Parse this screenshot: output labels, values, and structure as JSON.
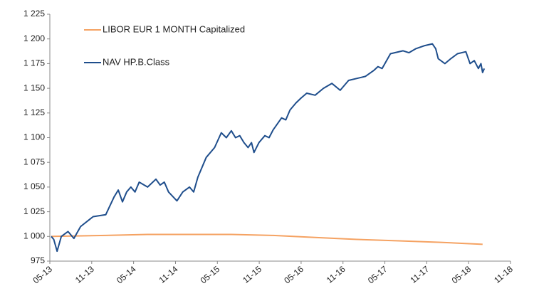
{
  "chart_data": {
    "type": "line",
    "series": [
      {
        "name": "LIBOR EUR 1 MONTH Capitalized",
        "color": "#f5a262",
        "x": [
          2013.35,
          2014.0,
          2014.5,
          2015.0,
          2015.5,
          2016.0,
          2016.5,
          2017.0,
          2017.5,
          2018.0,
          2018.5
        ],
        "values": [
          1000,
          1001,
          1002,
          1002,
          1002,
          1001,
          999,
          997,
          995.5,
          994,
          992
        ]
      },
      {
        "name": "NAV HP.B.Class",
        "color": "#1f4e8c",
        "x": [
          2013.35,
          2013.38,
          2013.42,
          2013.47,
          2013.55,
          2013.62,
          2013.7,
          2013.85,
          2014.0,
          2014.1,
          2014.15,
          2014.2,
          2014.25,
          2014.3,
          2014.35,
          2014.4,
          2014.5,
          2014.6,
          2014.65,
          2014.7,
          2014.75,
          2014.85,
          2014.92,
          2015.0,
          2015.05,
          2015.1,
          2015.2,
          2015.3,
          2015.38,
          2015.44,
          2015.5,
          2015.55,
          2015.6,
          2015.65,
          2015.7,
          2015.74,
          2015.77,
          2015.83,
          2015.9,
          2015.95,
          2016.0,
          2016.1,
          2016.15,
          2016.2,
          2016.27,
          2016.33,
          2016.4,
          2016.5,
          2016.6,
          2016.7,
          2016.8,
          2016.9,
          2017.0,
          2017.1,
          2017.2,
          2017.25,
          2017.3,
          2017.4,
          2017.55,
          2017.62,
          2017.7,
          2017.8,
          2017.9,
          2017.94,
          2017.97,
          2018.05,
          2018.12,
          2018.2,
          2018.3,
          2018.35,
          2018.4,
          2018.45,
          2018.48,
          2018.5,
          2018.52
        ],
        "values": [
          1000,
          997,
          985,
          1000,
          1005,
          998,
          1010,
          1020,
          1022,
          1040,
          1047,
          1035,
          1045,
          1050,
          1045,
          1055,
          1050,
          1058,
          1052,
          1055,
          1045,
          1036,
          1045,
          1050,
          1045,
          1060,
          1080,
          1090,
          1105,
          1100,
          1107,
          1100,
          1102,
          1095,
          1090,
          1095,
          1085,
          1095,
          1102,
          1100,
          1108,
          1120,
          1118,
          1128,
          1135,
          1140,
          1145,
          1143,
          1150,
          1155,
          1148,
          1158,
          1160,
          1162,
          1168,
          1172,
          1170,
          1185,
          1188,
          1186,
          1190,
          1193,
          1195,
          1190,
          1180,
          1175,
          1180,
          1185,
          1187,
          1175,
          1178,
          1170,
          1175,
          1166,
          1170
        ]
      }
    ],
    "xlim": [
      2013.333,
      2018.833
    ],
    "xticks": [
      {
        "value": 2013.333,
        "label": "05-13"
      },
      {
        "value": 2013.833,
        "label": "11-13"
      },
      {
        "value": 2014.333,
        "label": "05-14"
      },
      {
        "value": 2014.833,
        "label": "11-14"
      },
      {
        "value": 2015.333,
        "label": "05-15"
      },
      {
        "value": 2015.833,
        "label": "11-15"
      },
      {
        "value": 2016.333,
        "label": "05-16"
      },
      {
        "value": 2016.833,
        "label": "11-16"
      },
      {
        "value": 2017.333,
        "label": "05-17"
      },
      {
        "value": 2017.833,
        "label": "11-17"
      },
      {
        "value": 2018.333,
        "label": "05-18"
      },
      {
        "value": 2018.833,
        "label": "11-18"
      }
    ],
    "ylim": [
      975,
      1225
    ],
    "yticks": [
      975,
      {
        "value": 1000,
        "label": "1 000"
      },
      {
        "value": 1025,
        "label": "1 025"
      },
      {
        "value": 1050,
        "label": "1 050"
      },
      {
        "value": 1075,
        "label": "1 075"
      },
      {
        "value": 1100,
        "label": "1 100"
      },
      {
        "value": 1125,
        "label": "1 125"
      },
      {
        "value": 1150,
        "label": "1 150"
      },
      {
        "value": 1175,
        "label": "1 175"
      },
      {
        "value": 1200,
        "label": "1 200"
      },
      {
        "value": 1225,
        "label": "1 225"
      }
    ],
    "grid": false,
    "legend": "top-left"
  }
}
